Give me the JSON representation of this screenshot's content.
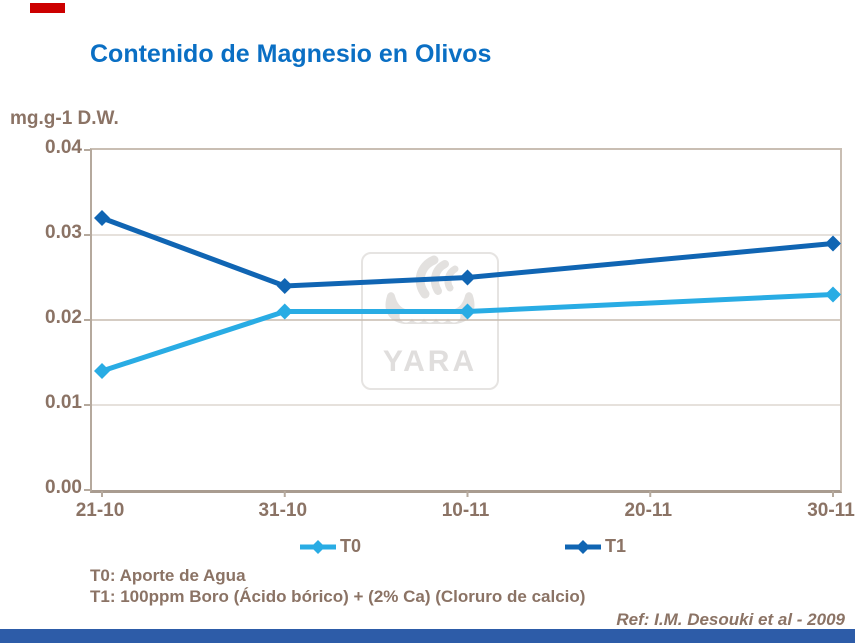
{
  "page": {
    "title": "Contenido de Magnesio en Olivos",
    "y_axis_unit": "mg.g-1 D.W.",
    "footnotes": [
      "T0: Aporte de Agua",
      "T1: 100ppm Boro (Ácido bórico) + (2% Ca) (Cloruro de calcio)"
    ],
    "ref": "Ref: I.M. Desouki et al - 2009"
  },
  "watermark": {
    "text": "YARA"
  },
  "colors": {
    "title_blue": "#0a6fc4",
    "label_brown": "#8b7365",
    "t0_cyan": "#29ace4",
    "t1_blue": "#1065b3",
    "top_bar_red": "#cc0000",
    "bottom_bar_blue": "#2d5ca8",
    "axis": "#b5a99d",
    "grid": "#ddd7d0",
    "grid_mid": "#c7bbaf",
    "watermark_gray": "#e3e1df"
  },
  "chart_data": {
    "type": "line",
    "title": "Contenido de Magnesio en Olivos",
    "ylabel": "mg.g-1 D.W.",
    "xlabel": "",
    "categories": [
      "21-10",
      "31-10",
      "10-11",
      "20-11",
      "30-11"
    ],
    "series": [
      {
        "name": "T0",
        "color": "#29ace4",
        "values": [
          0.014,
          0.021,
          0.021,
          null,
          0.023
        ]
      },
      {
        "name": "T1",
        "color": "#1065b3",
        "values": [
          0.032,
          0.024,
          0.025,
          null,
          0.029
        ]
      }
    ],
    "ylim": [
      0,
      0.04
    ],
    "y_ticks": [
      0,
      0.01,
      0.02,
      0.03,
      0.04
    ],
    "y_tick_labels": [
      "0.00",
      "0.01",
      "0.02",
      "0.03",
      "0.04"
    ],
    "grid": "horizontal",
    "marker": "diamond",
    "legend_position": "bottom"
  },
  "legend": [
    {
      "label": "T0"
    },
    {
      "label": "T1"
    }
  ]
}
